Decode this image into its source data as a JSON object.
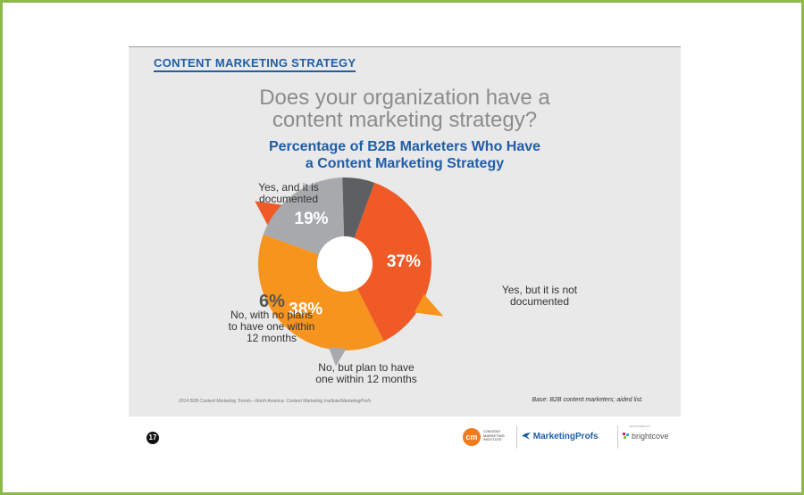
{
  "section_title": "CONTENT MARKETING STRATEGY",
  "question_line1": "Does your organization have a",
  "question_line2": "content marketing strategy?",
  "chart_data": {
    "type": "pie",
    "title_line1": "Percentage of B2B Marketers Who Have",
    "title_line2": "a Content Marketing Strategy",
    "legend": "none",
    "slices": [
      {
        "label_lines": [
          "Yes, and it is",
          "documented"
        ],
        "value": 37,
        "display": "37%",
        "color": "#ef5a27"
      },
      {
        "label_lines": [
          "Yes, but it is not",
          "documented"
        ],
        "value": 38,
        "display": "38%",
        "color": "#f7941e"
      },
      {
        "label_lines": [
          "No, but plan to have",
          "one within 12 months"
        ],
        "value": 19,
        "display": "19%",
        "color": "#a7a9ac"
      },
      {
        "label_lines": [
          "No, with no plans",
          "to have one within",
          "12 months"
        ],
        "value": 6,
        "display": "6%",
        "color": "#5d5f63"
      }
    ]
  },
  "source_note": "2014 B2B Content Marketing Trends—North America: Content Marketing Institute/MarketingProfs",
  "base_note": "Base: B2B content marketers; aided list.",
  "footer": {
    "page_number": "17",
    "cmi_mark": "cm",
    "cmi_text": "CONTENT MARKETING INSTITUTE",
    "marketingprofs": "MarketingProfs",
    "sponsor_label": "SPONSORED BY",
    "brightcove": "brightcove"
  },
  "icons": {
    "marketingprofs": "bird-icon",
    "brightcove": "brightcove-mark-icon"
  }
}
